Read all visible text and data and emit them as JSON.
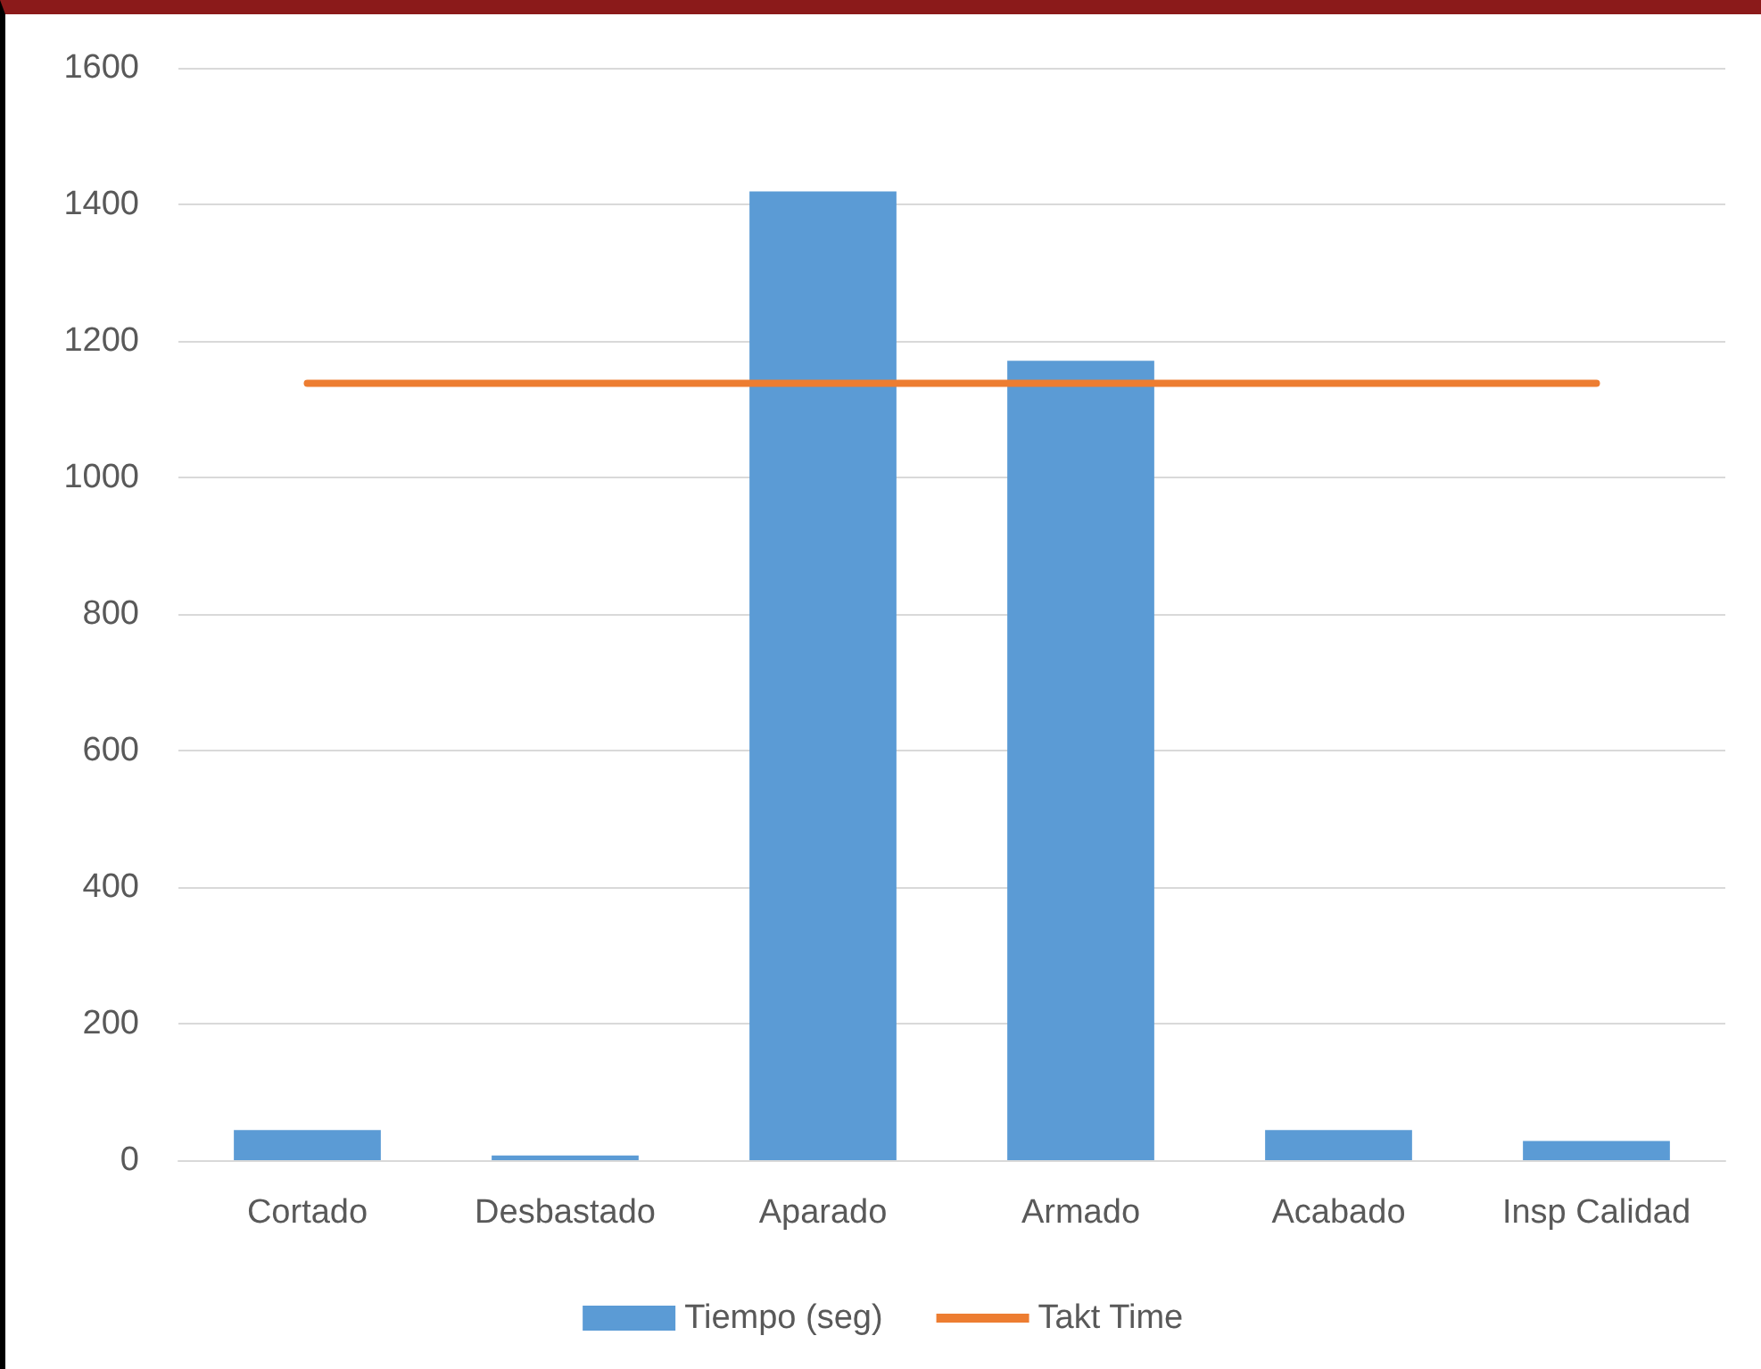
{
  "chart_data": {
    "type": "bar",
    "categories": [
      "Cortado",
      "Desbastado",
      "Aparado",
      "Armado",
      "Acabado",
      "Insp Calidad"
    ],
    "series": [
      {
        "name": "Tiempo (seg)",
        "color": "#5b9bd5",
        "values": [
          44,
          7,
          1419,
          1171,
          44,
          28
        ]
      },
      {
        "name": "Takt Time",
        "type": "line",
        "color": "#ed7d31",
        "values": [
          1138,
          1138,
          1138,
          1138,
          1138,
          1138
        ]
      }
    ],
    "ylim": [
      0,
      1600
    ],
    "yticks": [
      0,
      200,
      400,
      600,
      800,
      1000,
      1200,
      1400,
      1600
    ],
    "grid": "y",
    "legend": "bottom",
    "marker": "none"
  }
}
